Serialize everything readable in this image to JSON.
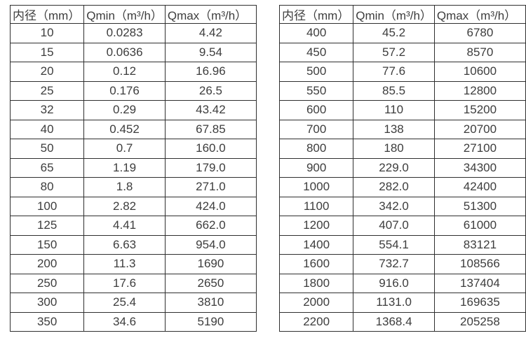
{
  "colors": {
    "background": "#ffffff",
    "border": "#2f2f2f",
    "text": "#3d3d3d"
  },
  "tables": [
    {
      "name": "flow-table-small-diameters",
      "headers": [
        "内径（mm）",
        "Qmin（m³/h）",
        "Qmax（m³/h）"
      ],
      "rows": [
        [
          "10",
          "0.0283",
          "4.42"
        ],
        [
          "15",
          "0.0636",
          "9.54"
        ],
        [
          "20",
          "0.12",
          "16.96"
        ],
        [
          "25",
          "0.176",
          "26.5"
        ],
        [
          "32",
          "0.29",
          "43.42"
        ],
        [
          "40",
          "0.452",
          "67.85"
        ],
        [
          "50",
          "0.7",
          "160.0"
        ],
        [
          "65",
          "1.19",
          "179.0"
        ],
        [
          "80",
          "1.8",
          "271.0"
        ],
        [
          "100",
          "2.82",
          "424.0"
        ],
        [
          "125",
          "4.41",
          "662.0"
        ],
        [
          "150",
          "6.63",
          "954.0"
        ],
        [
          "200",
          "11.3",
          "1690"
        ],
        [
          "250",
          "17.6",
          "2650"
        ],
        [
          "300",
          "25.4",
          "3810"
        ],
        [
          "350",
          "34.6",
          "5190"
        ]
      ]
    },
    {
      "name": "flow-table-large-diameters",
      "headers": [
        "内径（mm）",
        "Qmin（m³/h）",
        "Qmax（m³/h）"
      ],
      "rows": [
        [
          "400",
          "45.2",
          "6780"
        ],
        [
          "450",
          "57.2",
          "8570"
        ],
        [
          "500",
          "77.6",
          "10600"
        ],
        [
          "550",
          "85.5",
          "12800"
        ],
        [
          "600",
          "110",
          "15200"
        ],
        [
          "700",
          "138",
          "20700"
        ],
        [
          "800",
          "180",
          "27100"
        ],
        [
          "900",
          "229.0",
          "34300"
        ],
        [
          "1000",
          "282.0",
          "42400"
        ],
        [
          "1100",
          "342.0",
          "51300"
        ],
        [
          "1200",
          "407.0",
          "61000"
        ],
        [
          "1400",
          "554.1",
          "83121"
        ],
        [
          "1600",
          "732.7",
          "108566"
        ],
        [
          "1800",
          "916.0",
          "137404"
        ],
        [
          "2000",
          "1131.0",
          "169635"
        ],
        [
          "2200",
          "1368.4",
          "205258"
        ]
      ]
    }
  ]
}
